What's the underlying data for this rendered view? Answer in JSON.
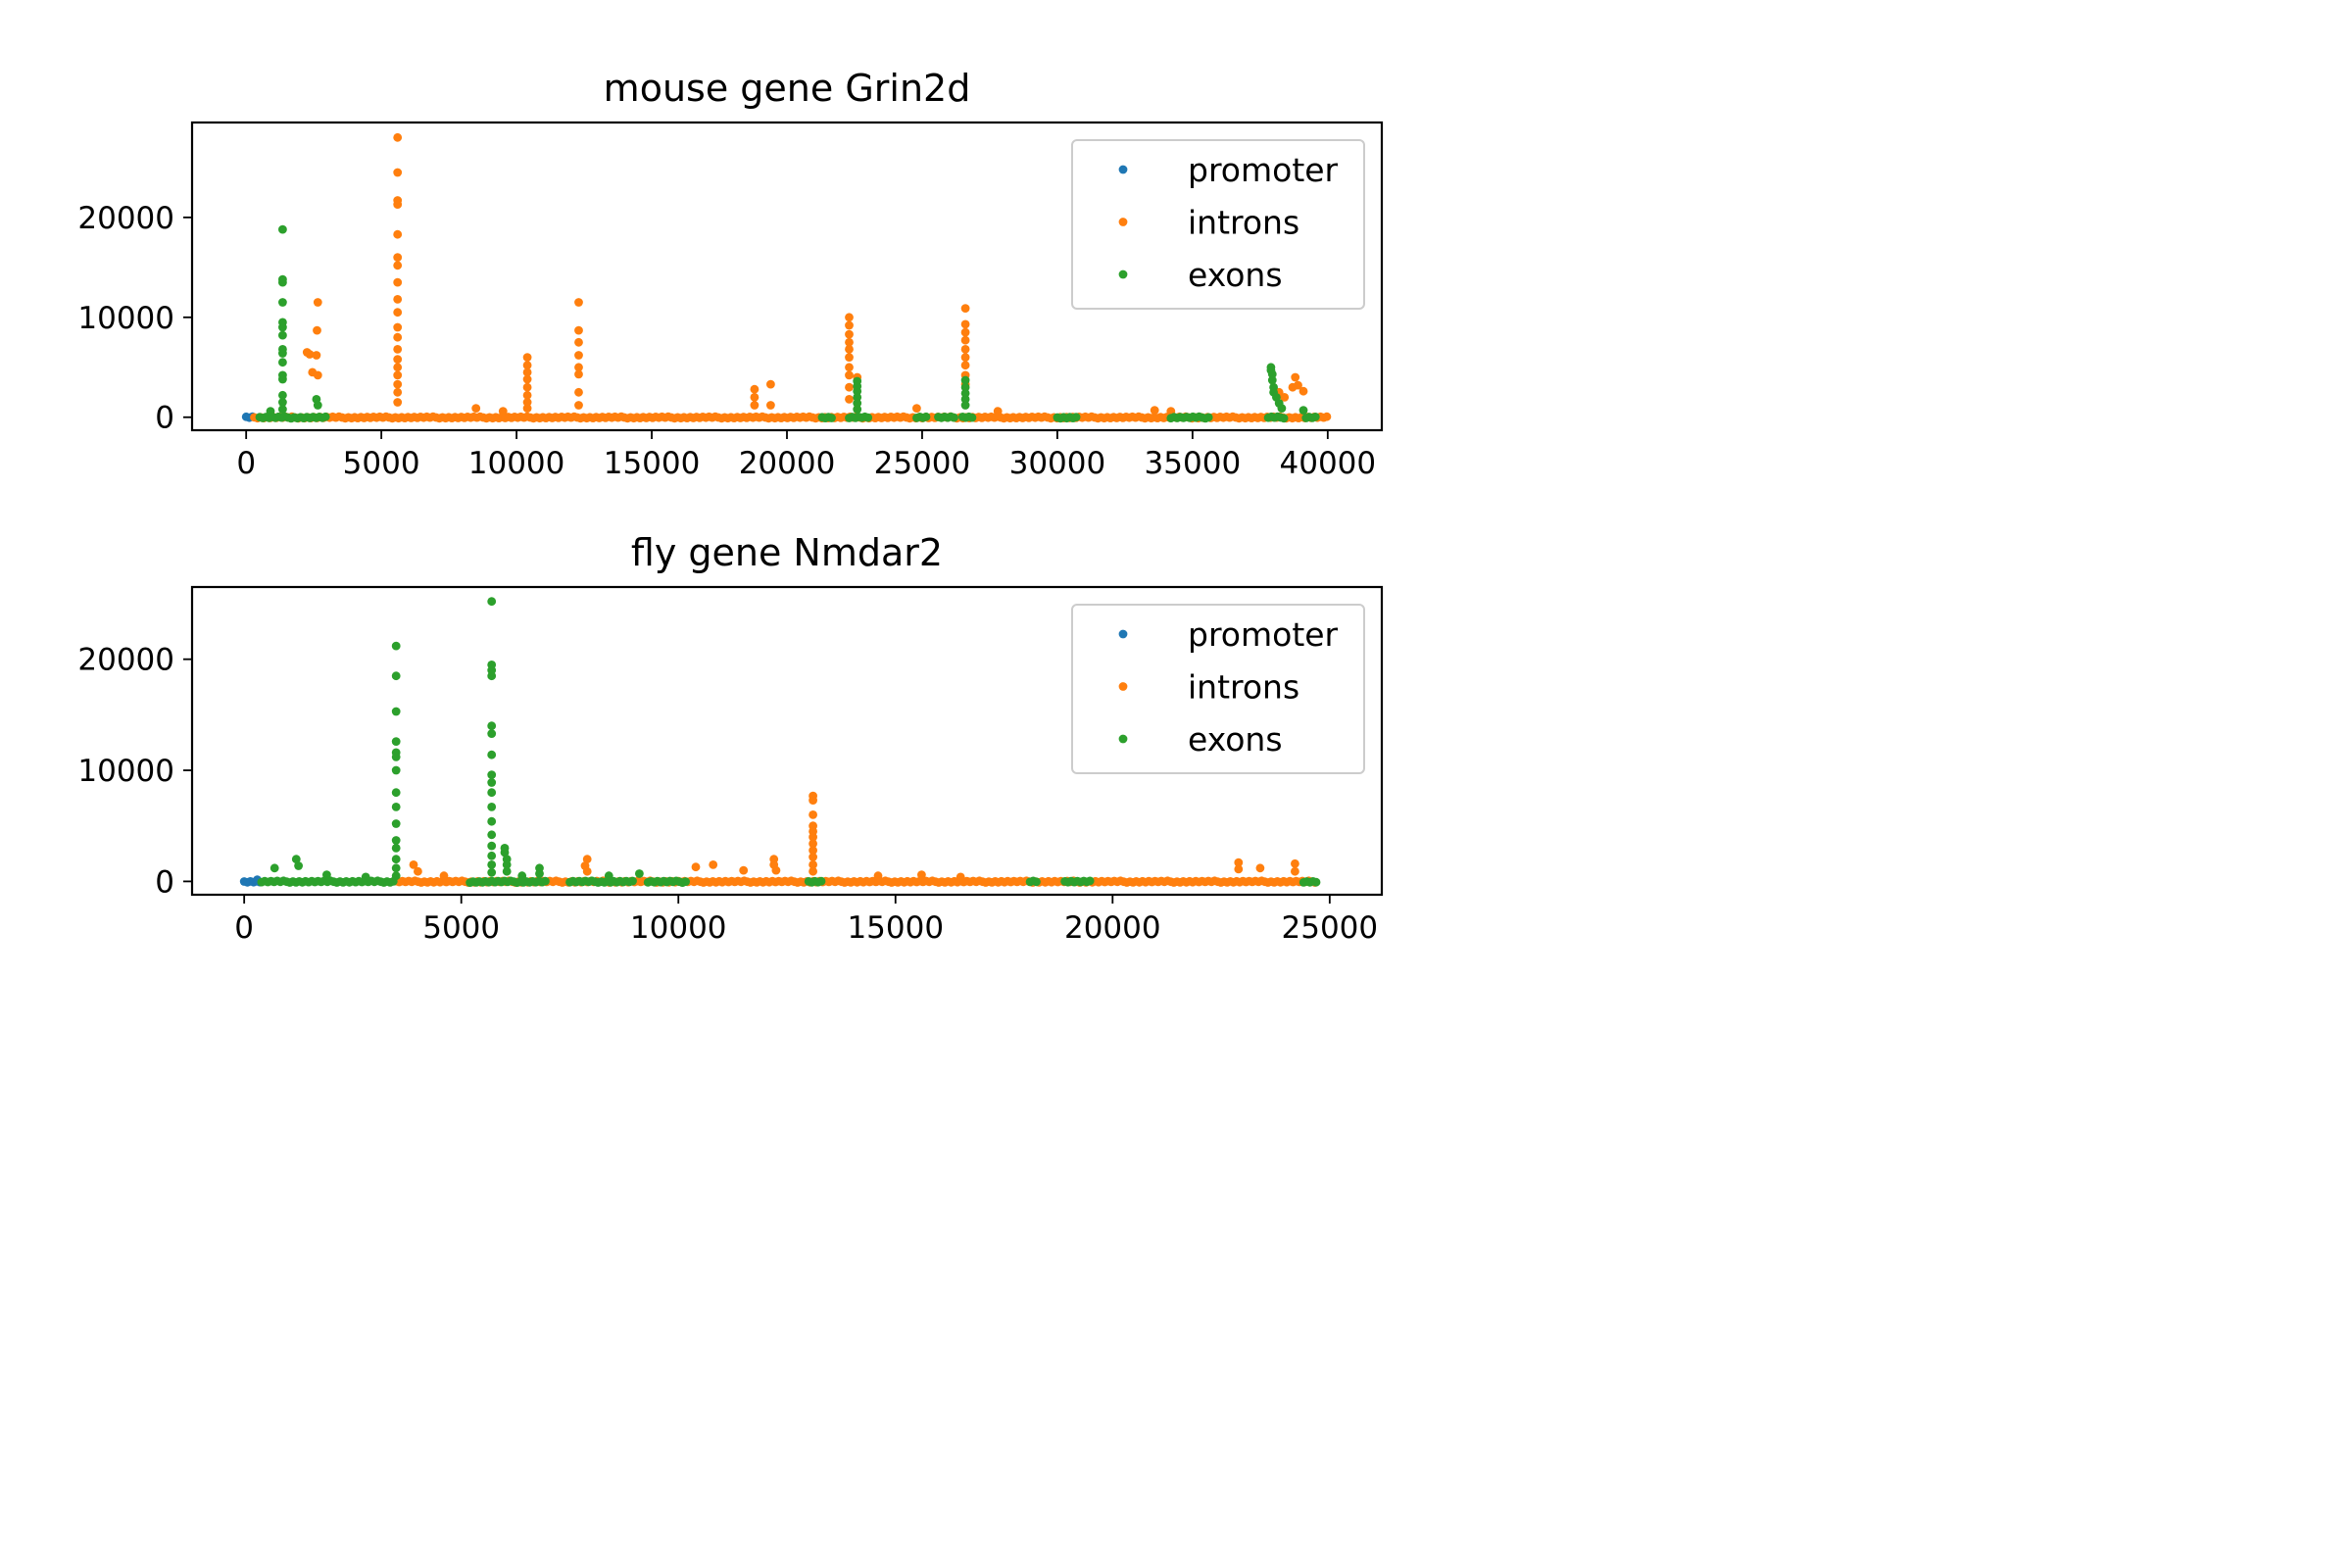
{
  "chart_data": [
    {
      "type": "scatter",
      "title": "mouse gene Grin2d",
      "xlabel": "",
      "ylabel": "",
      "xlim": [
        -2000,
        42000
      ],
      "ylim": [
        -1300,
        29500
      ],
      "xticks": [
        0,
        5000,
        10000,
        15000,
        20000,
        25000,
        30000,
        35000,
        40000
      ],
      "yticks": [
        0,
        10000,
        20000
      ],
      "grid": false,
      "legend": "top-right",
      "series": [
        {
          "name": "promoter",
          "color": "#1f77b4",
          "segments": [
            [
              0,
              300,
              0
            ]
          ],
          "spikes": []
        },
        {
          "name": "introns",
          "color": "#ff7f0e",
          "segments": [
            [
              300,
              40000,
              0
            ]
          ],
          "spikes": [
            [
              2250,
              6500
            ],
            [
              2350,
              6300
            ],
            [
              2450,
              4500
            ],
            [
              2650,
              11500
            ],
            [
              2620,
              8700
            ],
            [
              2600,
              6200
            ],
            [
              2650,
              4200
            ],
            [
              5600,
              28000
            ],
            [
              5600,
              24500
            ],
            [
              5600,
              21700
            ],
            [
              5600,
              21300
            ],
            [
              5600,
              18300
            ],
            [
              5600,
              16000
            ],
            [
              5600,
              15200
            ],
            [
              5600,
              13500
            ],
            [
              5600,
              11800
            ],
            [
              5600,
              10500
            ],
            [
              5600,
              9000
            ],
            [
              5600,
              8000
            ],
            [
              5600,
              6800
            ],
            [
              5600,
              5800
            ],
            [
              5600,
              5000
            ],
            [
              5600,
              4200
            ],
            [
              5600,
              3300
            ],
            [
              5600,
              2500
            ],
            [
              5600,
              1500
            ],
            [
              8500,
              900
            ],
            [
              9500,
              600
            ],
            [
              10400,
              6000
            ],
            [
              10400,
              5200
            ],
            [
              10400,
              4500
            ],
            [
              10400,
              3800
            ],
            [
              10400,
              3000
            ],
            [
              10400,
              2200
            ],
            [
              10400,
              1500
            ],
            [
              10400,
              900
            ],
            [
              12300,
              11500
            ],
            [
              12300,
              8700
            ],
            [
              12300,
              7500
            ],
            [
              12300,
              6200
            ],
            [
              12300,
              5000
            ],
            [
              12300,
              4300
            ],
            [
              12300,
              2500
            ],
            [
              12300,
              1200
            ],
            [
              18800,
              2800
            ],
            [
              18800,
              2000
            ],
            [
              18800,
              1200
            ],
            [
              19400,
              3300
            ],
            [
              19400,
              1200
            ],
            [
              22300,
              10000
            ],
            [
              22300,
              9200
            ],
            [
              22300,
              8300
            ],
            [
              22300,
              7500
            ],
            [
              22300,
              6800
            ],
            [
              22300,
              6000
            ],
            [
              22300,
              5000
            ],
            [
              22300,
              4200
            ],
            [
              22300,
              3000
            ],
            [
              22300,
              1800
            ],
            [
              22600,
              4000
            ],
            [
              24800,
              900
            ],
            [
              26600,
              10900
            ],
            [
              26600,
              9300
            ],
            [
              26600,
              8500
            ],
            [
              26600,
              7700
            ],
            [
              26600,
              6800
            ],
            [
              26600,
              6000
            ],
            [
              26600,
              5200
            ],
            [
              26600,
              4200
            ],
            [
              26600,
              3300
            ],
            [
              27800,
              600
            ],
            [
              33600,
              700
            ],
            [
              34200,
              600
            ],
            [
              38200,
              2500
            ],
            [
              38400,
              2000
            ],
            [
              38700,
              3000
            ],
            [
              38800,
              4000
            ],
            [
              38900,
              3200
            ],
            [
              39100,
              2600
            ]
          ]
        },
        {
          "name": "exons",
          "color": "#2ca02c",
          "segments": [
            [
              500,
              3000,
              0
            ],
            [
              21300,
              21700,
              0
            ],
            [
              22300,
              23000,
              0
            ],
            [
              24800,
              25200,
              0
            ],
            [
              25600,
              26200,
              0
            ],
            [
              26500,
              26900,
              0
            ],
            [
              30000,
              30800,
              0
            ],
            [
              34200,
              35600,
              0
            ],
            [
              37800,
              38400,
              0
            ],
            [
              39200,
              39600,
              0
            ]
          ],
          "spikes": [
            [
              900,
              600
            ],
            [
              1350,
              18800
            ],
            [
              1350,
              13800
            ],
            [
              1350,
              13500
            ],
            [
              1350,
              11500
            ],
            [
              1350,
              9500
            ],
            [
              1350,
              9000
            ],
            [
              1350,
              8200
            ],
            [
              1350,
              6800
            ],
            [
              1350,
              6400
            ],
            [
              1350,
              5500
            ],
            [
              1350,
              4200
            ],
            [
              1350,
              3800
            ],
            [
              1350,
              2200
            ],
            [
              1350,
              1500
            ],
            [
              1350,
              800
            ],
            [
              2600,
              1800
            ],
            [
              2650,
              1200
            ],
            [
              22600,
              3600
            ],
            [
              22600,
              3100
            ],
            [
              22600,
              2600
            ],
            [
              22600,
              2000
            ],
            [
              22600,
              1400
            ],
            [
              22600,
              800
            ],
            [
              26600,
              3700
            ],
            [
              26600,
              3000
            ],
            [
              26600,
              2400
            ],
            [
              26600,
              1800
            ],
            [
              26600,
              1200
            ],
            [
              37900,
              5000
            ],
            [
              37900,
              4700
            ],
            [
              37950,
              4300
            ],
            [
              37950,
              3700
            ],
            [
              38000,
              3000
            ],
            [
              38000,
              2500
            ],
            [
              38100,
              2000
            ],
            [
              38200,
              1400
            ],
            [
              38300,
              900
            ],
            [
              39100,
              700
            ]
          ]
        }
      ]
    },
    {
      "type": "scatter",
      "title": "fly gene Nmdar2",
      "xlabel": "",
      "ylabel": "",
      "xlim": [
        -1200,
        26200
      ],
      "ylim": [
        -1200,
        26500
      ],
      "xticks": [
        0,
        5000,
        10000,
        15000,
        20000,
        25000
      ],
      "yticks": [
        0,
        10000,
        20000
      ],
      "grid": false,
      "legend": "top-right",
      "series": [
        {
          "name": "promoter",
          "color": "#1f77b4",
          "segments": [
            [
              0,
              400,
              0
            ]
          ],
          "spikes": [
            [
              300,
              150
            ]
          ]
        },
        {
          "name": "introns",
          "color": "#ff7f0e",
          "segments": [
            [
              3500,
              24700,
              0
            ]
          ],
          "spikes": [
            [
              3900,
              1500
            ],
            [
              4000,
              900
            ],
            [
              4600,
              500
            ],
            [
              7900,
              2000
            ],
            [
              7850,
              1400
            ],
            [
              7900,
              900
            ],
            [
              10400,
              1300
            ],
            [
              10800,
              1500
            ],
            [
              11500,
              1000
            ],
            [
              12200,
              2000
            ],
            [
              12200,
              1500
            ],
            [
              12250,
              1000
            ],
            [
              13100,
              7700
            ],
            [
              13100,
              7300
            ],
            [
              13100,
              6000
            ],
            [
              13100,
              5000
            ],
            [
              13100,
              4500
            ],
            [
              13100,
              4000
            ],
            [
              13100,
              3400
            ],
            [
              13100,
              2800
            ],
            [
              13100,
              2200
            ],
            [
              13100,
              1500
            ],
            [
              13100,
              900
            ],
            [
              14600,
              500
            ],
            [
              15600,
              600
            ],
            [
              16500,
              400
            ],
            [
              22900,
              1700
            ],
            [
              22900,
              1100
            ],
            [
              23400,
              1200
            ],
            [
              24200,
              1600
            ],
            [
              24200,
              900
            ]
          ]
        },
        {
          "name": "exons",
          "color": "#2ca02c",
          "segments": [
            [
              400,
              3500,
              0
            ],
            [
              5200,
              7000,
              0
            ],
            [
              7500,
              9000,
              0
            ],
            [
              9300,
              10200,
              0
            ],
            [
              13000,
              13300,
              0
            ],
            [
              18100,
              18300,
              0
            ],
            [
              18900,
              19500,
              0
            ],
            [
              24400,
              24700,
              0
            ]
          ],
          "spikes": [
            [
              700,
              1200
            ],
            [
              1200,
              2000
            ],
            [
              1250,
              1400
            ],
            [
              1900,
              600
            ],
            [
              2800,
              400
            ],
            [
              3500,
              21200
            ],
            [
              3500,
              18500
            ],
            [
              3500,
              15300
            ],
            [
              3500,
              12600
            ],
            [
              3500,
              11600
            ],
            [
              3500,
              11200
            ],
            [
              3500,
              10000
            ],
            [
              3500,
              8000
            ],
            [
              3500,
              6700
            ],
            [
              3500,
              5200
            ],
            [
              3500,
              3700
            ],
            [
              3500,
              3000
            ],
            [
              3500,
              2000
            ],
            [
              3500,
              1200
            ],
            [
              3500,
              500
            ],
            [
              5700,
              25200
            ],
            [
              5700,
              19500
            ],
            [
              5700,
              19000
            ],
            [
              5700,
              18500
            ],
            [
              5700,
              14000
            ],
            [
              5700,
              13300
            ],
            [
              5700,
              11400
            ],
            [
              5700,
              9600
            ],
            [
              5700,
              8900
            ],
            [
              5700,
              8000
            ],
            [
              5700,
              6700
            ],
            [
              5700,
              5400
            ],
            [
              5700,
              4200
            ],
            [
              5700,
              3200
            ],
            [
              5700,
              2300
            ],
            [
              5700,
              1500
            ],
            [
              5700,
              800
            ],
            [
              6000,
              3000
            ],
            [
              6000,
              2600
            ],
            [
              6050,
              2000
            ],
            [
              6050,
              1500
            ],
            [
              6050,
              900
            ],
            [
              6400,
              500
            ],
            [
              6800,
              1200
            ],
            [
              6800,
              700
            ],
            [
              8400,
              500
            ],
            [
              9100,
              700
            ]
          ]
        }
      ]
    }
  ]
}
